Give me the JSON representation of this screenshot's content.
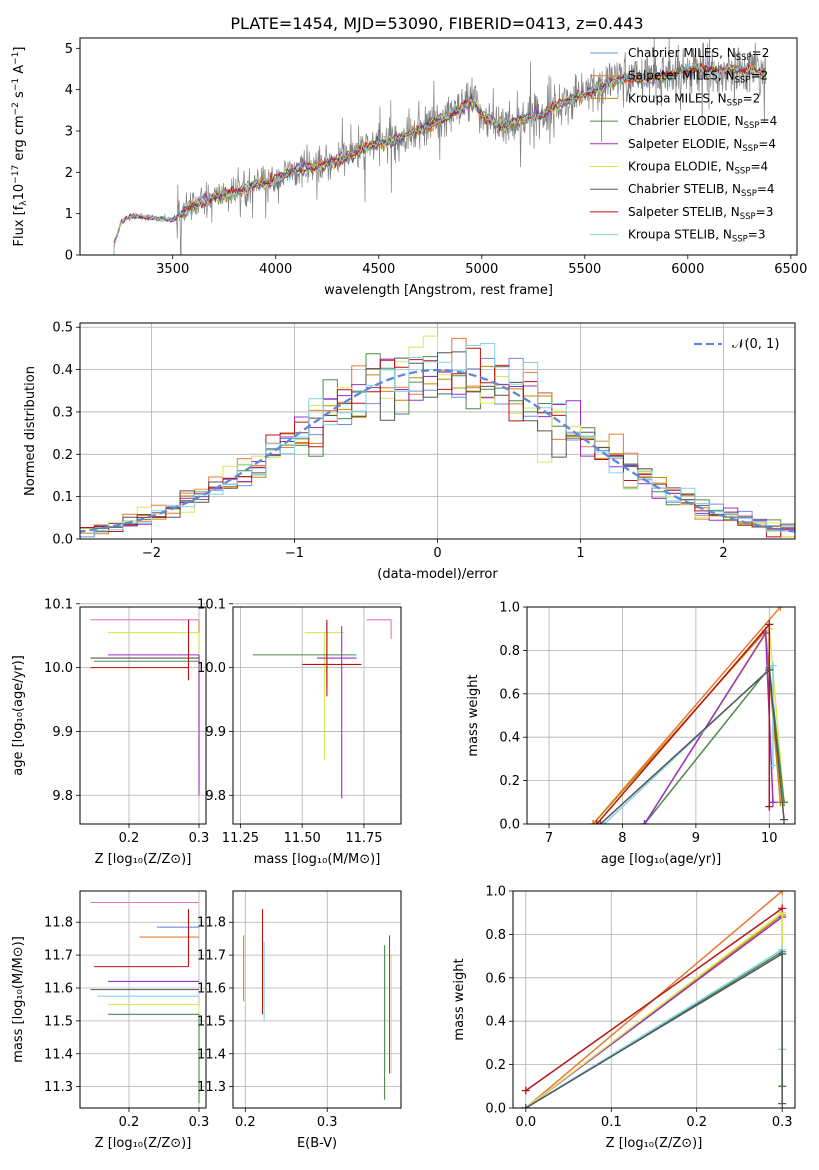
{
  "figure_title": "PLATE=1454, MJD=53090, FIBERID=0413, z=0.443",
  "colors": {
    "chabrier_miles": "#6f8fe8",
    "salpeter_miles": "#e87a33",
    "kroupa_miles": "#cc8800",
    "chabrier_elodie": "#4e8a4e",
    "salpeter_elodie": "#9b30c8",
    "kroupa_elodie": "#d9e85a",
    "chabrier_stelib": "#555555",
    "salpeter_stelib": "#b81414",
    "kroupa_stelib": "#86d4e8",
    "normal_fit": "#5b8ad6",
    "data_spectrum": "#808080",
    "chabrier_miles_alt": "#e477c0"
  },
  "chart_data": [
    {
      "id": "spectrum",
      "type": "line",
      "xlabel": "wavelength [Angstrom, rest frame]",
      "ylabel": "Flux [f",
      "xlim": [
        3050,
        6530
      ],
      "ylim": [
        0,
        5.25
      ],
      "xticks": [
        3500,
        4000,
        4500,
        5000,
        5500,
        6000,
        6500
      ],
      "yticks": [
        0,
        1,
        2,
        3,
        4,
        5
      ],
      "grid": false,
      "legend_position": "top-right",
      "legend": [
        {
          "label": "Chabrier MILES, N",
          "sub": "SSP",
          "suffix": "=2",
          "color_key": "chabrier_miles"
        },
        {
          "label": "Salpeter MILES, N",
          "sub": "SSP",
          "suffix": "=2",
          "color_key": "salpeter_miles"
        },
        {
          "label": "Kroupa MILES, N",
          "sub": "SSP",
          "suffix": "=2",
          "color_key": "kroupa_miles"
        },
        {
          "label": "Chabrier ELODIE, N",
          "sub": "SSP",
          "suffix": "=4",
          "color_key": "chabrier_elodie"
        },
        {
          "label": "Salpeter ELODIE, N",
          "sub": "SSP",
          "suffix": "=4",
          "color_key": "salpeter_elodie"
        },
        {
          "label": "Kroupa ELODIE, N",
          "sub": "SSP",
          "suffix": "=4",
          "color_key": "kroupa_elodie"
        },
        {
          "label": "Chabrier STELIB, N",
          "sub": "SSP",
          "suffix": "=4",
          "color_key": "chabrier_stelib"
        },
        {
          "label": "Salpeter STELIB, N",
          "sub": "SSP",
          "suffix": "=3",
          "color_key": "salpeter_stelib"
        },
        {
          "label": "Kroupa STELIB, N",
          "sub": "SSP",
          "suffix": "=3",
          "color_key": "kroupa_stelib"
        }
      ],
      "continuum_nodes": {
        "x": [
          3200,
          3250,
          3300,
          3400,
          3500,
          3600,
          3700,
          3800,
          3900,
          4000,
          4100,
          4200,
          4300,
          4400,
          4500,
          4600,
          4700,
          4800,
          4900,
          4950,
          5000,
          5100,
          5200,
          5300,
          5400,
          5500,
          5600,
          5700,
          5800,
          5900,
          6000,
          6100,
          6200,
          6300,
          6400
        ],
        "y": [
          0.0,
          0.8,
          0.95,
          0.9,
          0.85,
          1.2,
          1.4,
          1.5,
          1.7,
          1.8,
          2.1,
          2.1,
          2.3,
          2.5,
          2.7,
          2.85,
          3.0,
          3.3,
          3.5,
          3.75,
          3.4,
          3.1,
          3.3,
          3.4,
          3.7,
          3.9,
          4.1,
          4.3,
          4.25,
          4.35,
          4.5,
          4.45,
          4.5,
          4.45,
          4.4
        ]
      }
    },
    {
      "id": "residual_hist",
      "type": "line",
      "xlabel": "(data-model)/error",
      "ylabel": "Normed distribution",
      "xlim": [
        -2.5,
        2.5
      ],
      "ylim": [
        0,
        0.51
      ],
      "xticks": [
        -2,
        -1,
        0,
        1,
        2
      ],
      "yticks": [
        0.0,
        0.1,
        0.2,
        0.3,
        0.4,
        0.5
      ],
      "xtick_labels": [
        "−2",
        "−1",
        "0",
        "1",
        "2"
      ],
      "ytick_labels": [
        "0.0",
        "0.1",
        "0.2",
        "0.3",
        "0.4",
        "0.5"
      ],
      "grid": true,
      "legend_position": "top-right",
      "legend": [
        {
          "label": "𝒩(0, 1)",
          "color_key": "normal_fit"
        }
      ],
      "bin_width": 0.1,
      "series_keys": [
        "chabrier_miles",
        "salpeter_miles",
        "kroupa_miles",
        "chabrier_elodie",
        "salpeter_elodie",
        "kroupa_elodie",
        "chabrier_stelib",
        "salpeter_stelib",
        "kroupa_stelib"
      ]
    },
    {
      "id": "age_vs_z",
      "type": "scatter",
      "xlabel": "Z [log₁₀(Z/Z⊙)]",
      "ylabel": "age  [log₁₀(age/yr)]",
      "xlim": [
        0.13,
        0.31
      ],
      "ylim": [
        9.755,
        10.095
      ],
      "xticks": [
        0.2,
        0.3
      ],
      "yticks": [
        9.8,
        9.9,
        10.0,
        10.1
      ],
      "grid": true,
      "errorbars": [
        {
          "x": 0.3,
          "y": 10.075,
          "xerr": [
            0.155,
            0.0
          ],
          "yerr": [
            0.0,
            0.0
          ],
          "color_key": "chabrier_miles_alt"
        },
        {
          "x": 0.3,
          "y": 10.075,
          "xerr": [
            0.0,
            0.0
          ],
          "yerr": [
            0.26,
            0.0
          ],
          "color_key": "salpeter_miles"
        },
        {
          "x": 0.3,
          "y": 10.055,
          "xerr": [
            0.13,
            0.0
          ],
          "yerr": [
            0.2,
            0.0
          ],
          "color_key": "kroupa_elodie"
        },
        {
          "x": 0.3,
          "y": 10.02,
          "xerr": [
            0.13,
            0.0
          ],
          "yerr": [
            0.22,
            0.0
          ],
          "color_key": "salpeter_elodie"
        },
        {
          "x": 0.3,
          "y": 10.015,
          "xerr": [
            0.155,
            0.0
          ],
          "yerr": [
            0.0,
            0.0
          ],
          "color_key": "chabrier_stelib"
        },
        {
          "x": 0.3,
          "y": 10.01,
          "xerr": [
            0.15,
            0.0
          ],
          "yerr": [
            0.0,
            0.0
          ],
          "color_key": "chabrier_elodie"
        },
        {
          "x": 0.285,
          "y": 10.0,
          "xerr": [
            0.14,
            0.0
          ],
          "yerr": [
            0.02,
            0.075
          ],
          "color_key": "salpeter_stelib"
        }
      ]
    },
    {
      "id": "age_vs_mass",
      "type": "scatter",
      "xlabel": "mass [log₁₀(M/M⊙)]",
      "ylabel": "",
      "xlim": [
        11.22,
        11.9
      ],
      "ylim": [
        9.755,
        10.095
      ],
      "xticks": [
        11.25,
        11.5,
        11.75
      ],
      "yticks": [
        9.8,
        9.9,
        10.0,
        10.1
      ],
      "grid": true,
      "errorbars": [
        {
          "x": 11.86,
          "y": 10.075,
          "xerr": [
            0.1,
            0.0
          ],
          "yerr": [
            0.0,
            0.0
          ],
          "color_key": "chabrier_miles_alt"
        },
        {
          "x": 11.76,
          "y": 10.075,
          "xerr": [
            0.0,
            0.0
          ],
          "yerr": [
            0.0,
            0.0
          ],
          "color_key": "salpeter_miles"
        },
        {
          "x": 11.86,
          "y": 10.075,
          "xerr": [
            0.0,
            0.0
          ],
          "yerr": [
            0.03,
            0.0
          ],
          "color_key": "chabrier_miles_alt"
        },
        {
          "x": 11.78,
          "y": 10.075,
          "xerr": [
            0.0,
            0.0
          ],
          "yerr": [
            0.0,
            0.0
          ],
          "color_key": "chabrier_miles"
        },
        {
          "x": 11.59,
          "y": 10.055,
          "xerr": [
            0.08,
            0.08
          ],
          "yerr": [
            0.2,
            0.0
          ],
          "color_key": "kroupa_elodie"
        },
        {
          "x": 11.6,
          "y": 10.02,
          "xerr": [
            0.3,
            0.12
          ],
          "yerr": [
            0.05,
            0.05
          ],
          "color_key": "chabrier_elodie"
        },
        {
          "x": 11.66,
          "y": 10.015,
          "xerr": [
            0.1,
            0.06
          ],
          "yerr": [
            0.22,
            0.05
          ],
          "color_key": "salpeter_elodie"
        },
        {
          "x": 11.6,
          "y": 10.005,
          "xerr": [
            0.1,
            0.14
          ],
          "yerr": [
            0.05,
            0.07
          ],
          "color_key": "salpeter_stelib"
        }
      ]
    },
    {
      "id": "massweight_vs_age",
      "type": "line",
      "xlabel": "age  [log₁₀(age/yr)]",
      "ylabel": "mass weight",
      "xlim": [
        6.7,
        10.35
      ],
      "ylim": [
        0.0,
        1.0
      ],
      "xticks": [
        7,
        8,
        9,
        10
      ],
      "yticks": [
        0.0,
        0.2,
        0.4,
        0.6,
        0.8,
        1.0
      ],
      "grid": true,
      "series": [
        {
          "color_key": "salpeter_miles",
          "x": [
            7.6,
            10.15
          ],
          "y": [
            0.0,
            1.0
          ]
        },
        {
          "color_key": "kroupa_miles",
          "x": [
            7.6,
            9.95,
            10.15
          ],
          "y": [
            0.0,
            0.89,
            0.1
          ]
        },
        {
          "color_key": "kroupa_elodie",
          "x": [
            8.3,
            10.0,
            10.2
          ],
          "y": [
            0.0,
            0.9,
            0.1
          ]
        },
        {
          "color_key": "chabrier_elodie",
          "x": [
            8.3,
            10.0,
            10.2
          ],
          "y": [
            0.0,
            0.72,
            0.1
          ]
        },
        {
          "color_key": "salpeter_elodie",
          "x": [
            8.3,
            9.95,
            10.05
          ],
          "y": [
            0.0,
            0.88,
            0.1
          ]
        },
        {
          "color_key": "kroupa_stelib",
          "x": [
            7.75,
            10.05,
            10.05
          ],
          "y": [
            0.0,
            0.73,
            0.27
          ]
        },
        {
          "color_key": "chabrier_stelib",
          "x": [
            7.7,
            10.0,
            10.2
          ],
          "y": [
            0.0,
            0.71,
            0.02
          ]
        },
        {
          "color_key": "salpeter_stelib",
          "x": [
            7.65,
            10.0,
            10.0
          ],
          "y": [
            0.0,
            0.92,
            0.08
          ]
        }
      ]
    },
    {
      "id": "mass_vs_z",
      "type": "scatter",
      "xlabel": "Z [log₁₀(Z/Z⊙)]",
      "ylabel": "mass [log₁₀(M/M⊙)]",
      "xlim": [
        0.13,
        0.31
      ],
      "ylim": [
        11.235,
        11.895
      ],
      "xticks": [
        0.2,
        0.3
      ],
      "yticks": [
        11.3,
        11.4,
        11.5,
        11.6,
        11.7,
        11.8
      ],
      "grid": true,
      "errorbars": [
        {
          "x": 0.3,
          "y": 11.86,
          "xerr": [
            0.155,
            0.0
          ],
          "yerr": [
            0.0,
            0.0
          ],
          "color_key": "chabrier_miles_alt"
        },
        {
          "x": 0.3,
          "y": 11.785,
          "xerr": [
            0.06,
            0.0
          ],
          "yerr": [
            0.0,
            0.0
          ],
          "color_key": "chabrier_miles"
        },
        {
          "x": 0.3,
          "y": 11.755,
          "xerr": [
            0.085,
            0.0
          ],
          "yerr": [
            0.0,
            0.0
          ],
          "color_key": "salpeter_miles"
        },
        {
          "x": 0.285,
          "y": 11.665,
          "xerr": [
            0.135,
            0.0
          ],
          "yerr": [
            0.0,
            0.175
          ],
          "color_key": "salpeter_stelib"
        },
        {
          "x": 0.3,
          "y": 11.62,
          "xerr": [
            0.13,
            0.0
          ],
          "yerr": [
            0.0,
            0.0
          ],
          "color_key": "salpeter_elodie"
        },
        {
          "x": 0.3,
          "y": 11.595,
          "xerr": [
            0.155,
            0.0
          ],
          "yerr": [
            0.0,
            0.0
          ],
          "color_key": "chabrier_stelib"
        },
        {
          "x": 0.3,
          "y": 11.575,
          "xerr": [
            0.145,
            0.0
          ],
          "yerr": [
            0.0,
            0.0
          ],
          "color_key": "kroupa_stelib"
        },
        {
          "x": 0.3,
          "y": 11.55,
          "xerr": [
            0.13,
            0.0
          ],
          "yerr": [
            0.2,
            0.0
          ],
          "color_key": "kroupa_elodie"
        },
        {
          "x": 0.3,
          "y": 11.52,
          "xerr": [
            0.13,
            0.0
          ],
          "yerr": [
            0.27,
            0.0
          ],
          "color_key": "chabrier_elodie"
        }
      ]
    },
    {
      "id": "mass_vs_ebv",
      "type": "scatter",
      "xlabel": "E(B-V)",
      "ylabel": "",
      "xlim": [
        0.185,
        0.39
      ],
      "ylim": [
        11.235,
        11.895
      ],
      "xticks": [
        0.2,
        0.3
      ],
      "yticks": [
        11.3,
        11.4,
        11.5,
        11.6,
        11.7,
        11.8
      ],
      "grid": true,
      "errorbars": [
        {
          "x": 0.198,
          "y": 11.86,
          "xerr": [
            0.0,
            0.0
          ],
          "yerr": [
            0.0,
            0.0
          ],
          "color_key": "chabrier_miles_alt"
        },
        {
          "x": 0.198,
          "y": 11.67,
          "xerr": [
            0.0,
            0.0
          ],
          "yerr": [
            0.11,
            0.09
          ],
          "color_key": "salpeter_miles"
        },
        {
          "x": 0.221,
          "y": 11.68,
          "xerr": [
            0.0,
            0.0
          ],
          "yerr": [
            0.16,
            0.16
          ],
          "color_key": "salpeter_stelib"
        },
        {
          "x": 0.223,
          "y": 11.62,
          "xerr": [
            0.0,
            0.0
          ],
          "yerr": [
            0.12,
            0.12
          ],
          "color_key": "kroupa_stelib"
        },
        {
          "x": 0.37,
          "y": 11.5,
          "xerr": [
            0.0,
            0.0
          ],
          "yerr": [
            0.24,
            0.23
          ],
          "color_key": "chabrier_elodie"
        },
        {
          "x": 0.376,
          "y": 11.53,
          "xerr": [
            0.0,
            0.0
          ],
          "yerr": [
            0.19,
            0.23
          ],
          "color_key": "salpeter_elodie"
        },
        {
          "x": 0.378,
          "y": 11.55,
          "xerr": [
            0.0,
            0.0
          ],
          "yerr": [
            0.21,
            0.15
          ],
          "color_key": "kroupa_elodie"
        }
      ]
    },
    {
      "id": "massweight_vs_z",
      "type": "line",
      "xlabel": "Z [log₁₀(Z/Z⊙)]",
      "ylabel": "mass weight",
      "xlim": [
        -0.015,
        0.315
      ],
      "ylim": [
        0.0,
        1.0
      ],
      "xticks": [
        0.0,
        0.1,
        0.2,
        0.3
      ],
      "yticks": [
        0.0,
        0.2,
        0.4,
        0.6,
        0.8,
        1.0
      ],
      "grid": true,
      "series": [
        {
          "color_key": "salpeter_miles",
          "x": [
            0.0,
            0.3
          ],
          "y": [
            0.0,
            1.0
          ]
        },
        {
          "color_key": "kroupa_miles",
          "x": [
            0.0,
            0.3,
            0.3
          ],
          "y": [
            0.0,
            0.89,
            0.1
          ]
        },
        {
          "color_key": "salpeter_elodie",
          "x": [
            0.0,
            0.3,
            0.3
          ],
          "y": [
            0.0,
            0.88,
            0.1
          ]
        },
        {
          "color_key": "kroupa_elodie",
          "x": [
            0.0,
            0.3,
            0.3
          ],
          "y": [
            0.0,
            0.9,
            0.1
          ]
        },
        {
          "color_key": "chabrier_elodie",
          "x": [
            0.0,
            0.3,
            0.3
          ],
          "y": [
            0.0,
            0.72,
            0.1
          ]
        },
        {
          "color_key": "kroupa_stelib",
          "x": [
            0.0,
            0.3,
            0.3
          ],
          "y": [
            0.0,
            0.73,
            0.27
          ]
        },
        {
          "color_key": "chabrier_stelib",
          "x": [
            0.0,
            0.3,
            0.3
          ],
          "y": [
            0.0,
            0.71,
            0.02
          ]
        },
        {
          "color_key": "salpeter_stelib",
          "x": [
            0.0,
            0.3
          ],
          "y": [
            0.08,
            0.92
          ]
        }
      ]
    }
  ]
}
